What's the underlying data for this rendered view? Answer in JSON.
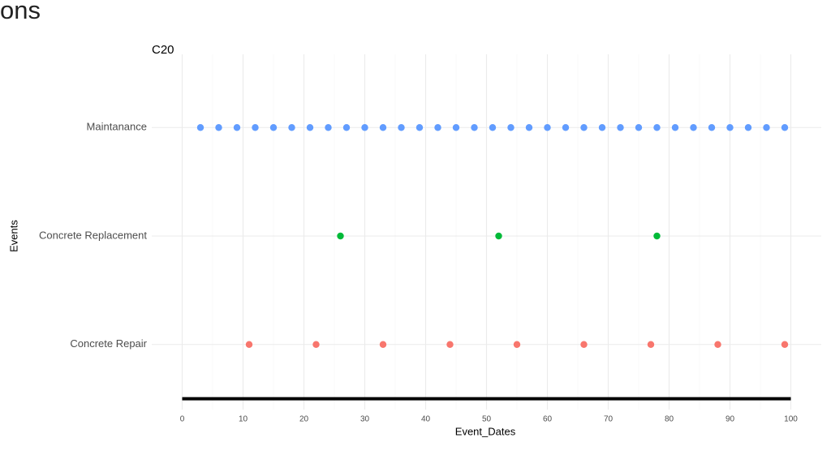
{
  "page_title": "ons",
  "chart_data": {
    "type": "scatter",
    "title": "C20",
    "x_label": "Event_Dates",
    "y_label": "Events",
    "xlim": [
      -5,
      105
    ],
    "xticks": [
      0,
      10,
      20,
      30,
      40,
      50,
      60,
      70,
      80,
      90,
      100
    ],
    "grid": true,
    "series": [
      {
        "name": "Concrete Repair",
        "color": "#F8766D",
        "values": [
          11,
          22,
          33,
          44,
          55,
          66,
          77,
          88,
          99
        ]
      },
      {
        "name": "Concrete Replacement",
        "color": "#00BA38",
        "values": [
          26,
          52,
          78
        ]
      },
      {
        "name": "Maintanance",
        "color": "#619CFF",
        "values": [
          3,
          6,
          9,
          12,
          15,
          18,
          21,
          24,
          27,
          30,
          33,
          36,
          39,
          42,
          45,
          48,
          51,
          54,
          57,
          60,
          63,
          66,
          69,
          72,
          75,
          78,
          81,
          84,
          87,
          90,
          93,
          96,
          99
        ]
      }
    ],
    "segment": {
      "x": [
        0,
        100
      ],
      "color": "#000000"
    }
  }
}
